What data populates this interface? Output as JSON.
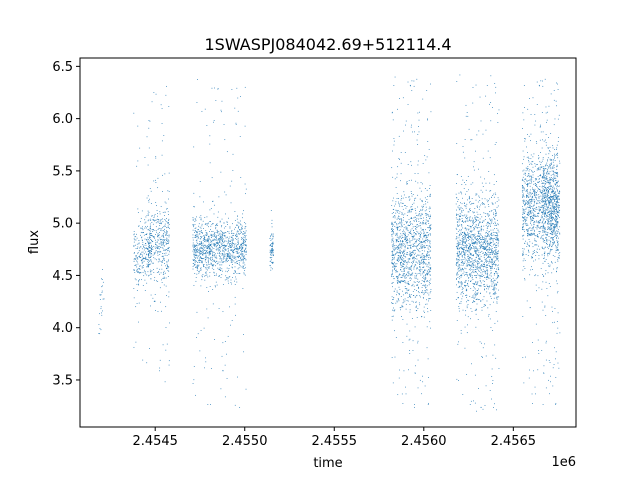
{
  "chart_data": {
    "type": "scatter",
    "title": "1SWASPJ084042.69+512114.4",
    "xlabel": "time",
    "ylabel": "flux",
    "x_offset_label": "1e6",
    "xlim": [
      2.45408,
      2.45685
    ],
    "ylim": [
      3.05,
      6.58
    ],
    "x_ticks": [
      2.4545,
      2.455,
      2.4555,
      2.456,
      2.4565
    ],
    "x_tick_labels": [
      "2.4545",
      "2.4550",
      "2.4555",
      "2.4560",
      "2.4565"
    ],
    "y_ticks": [
      3.5,
      4.0,
      4.5,
      5.0,
      5.5,
      6.0,
      6.5
    ],
    "y_tick_labels": [
      "3.5",
      "4.0",
      "4.5",
      "5.0",
      "5.5",
      "6.0",
      "6.5"
    ],
    "grid": false,
    "legend": "none",
    "marker_color": "#1f77b4",
    "series": [
      {
        "values_summary": "observing seasons (x in units of 1e6 days)",
        "clusters": [
          {
            "x_center": 2.4542,
            "x_width": 1.5e-05,
            "y_center": 4.25,
            "y_spread": 0.22,
            "y_min": 3.7,
            "y_max": 4.62,
            "density": 25
          },
          {
            "x_center": 2.45443,
            "x_width": 5e-05,
            "y_center": 4.72,
            "y_spread": 0.15,
            "y_min": 3.6,
            "y_max": 6.1,
            "density": 260
          },
          {
            "x_center": 2.45452,
            "x_width": 6e-05,
            "y_center": 4.78,
            "y_spread": 0.22,
            "y_min": 3.45,
            "y_max": 6.35,
            "density": 420
          },
          {
            "x_center": 2.45486,
            "x_width": 0.00015,
            "y_center": 4.76,
            "y_spread": 0.14,
            "y_min": 3.2,
            "y_max": 6.38,
            "density": 1200
          },
          {
            "x_center": 2.45515,
            "x_width": 1e-05,
            "y_center": 4.75,
            "y_spread": 0.09,
            "y_min": 4.55,
            "y_max": 5.32,
            "density": 80
          },
          {
            "x_center": 2.45593,
            "x_width": 0.00011,
            "y_center": 4.75,
            "y_spread": 0.28,
            "y_min": 3.2,
            "y_max": 6.4,
            "density": 1300
          },
          {
            "x_center": 2.4563,
            "x_width": 0.00012,
            "y_center": 4.73,
            "y_spread": 0.26,
            "y_min": 3.2,
            "y_max": 6.42,
            "density": 1500
          },
          {
            "x_center": 2.45665,
            "x_width": 0.0001,
            "y_center": 5.18,
            "y_spread": 0.26,
            "y_min": 3.2,
            "y_max": 6.4,
            "density": 1100
          },
          {
            "x_center": 2.45671,
            "x_width": 5e-05,
            "y_center": 5.12,
            "y_spread": 0.24,
            "y_min": 3.6,
            "y_max": 6.35,
            "density": 500
          }
        ]
      }
    ]
  }
}
